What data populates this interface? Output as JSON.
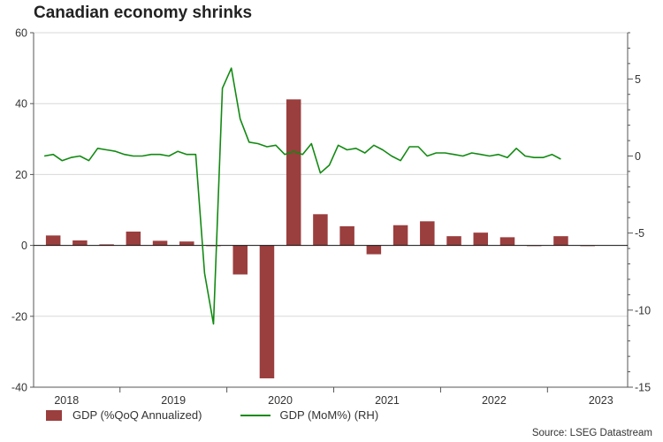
{
  "chart_data": {
    "type": "bar+line",
    "title": "Canadian economy shrinks",
    "source": "Source: LSEG Datastream",
    "x_ticks": [
      "2018",
      "2019",
      "2020",
      "2021",
      "2022",
      "2023"
    ],
    "left_axis": {
      "ylim": [
        -40,
        60
      ],
      "ticks": [
        -40,
        -20,
        0,
        20,
        40,
        60
      ]
    },
    "right_axis": {
      "ylim": [
        -15,
        8
      ],
      "ticks": [
        -15,
        -10,
        -5,
        0,
        5
      ]
    },
    "series": [
      {
        "name": "GDP (%QoQ Annualized)",
        "kind": "bar",
        "axis": "left",
        "color": "#9b3e3e",
        "categories": [
          "2018Q2",
          "2018Q3",
          "2018Q4",
          "2019Q1",
          "2019Q2",
          "2019Q3",
          "2019Q4",
          "2020Q1",
          "2020Q2",
          "2020Q3",
          "2020Q4",
          "2021Q1",
          "2021Q2",
          "2021Q3",
          "2021Q4",
          "2022Q1",
          "2022Q2",
          "2022Q3",
          "2022Q4",
          "2023Q1",
          "2023Q2"
        ],
        "values": [
          2.8,
          1.4,
          0.3,
          3.9,
          1.3,
          1.1,
          0.0,
          -8.2,
          -37.5,
          41.2,
          8.8,
          5.4,
          -2.5,
          5.7,
          6.8,
          2.6,
          3.6,
          2.3,
          0.0,
          2.6,
          -0.2
        ]
      },
      {
        "name": "GDP (MoM%) (RH)",
        "kind": "line",
        "axis": "right",
        "color": "#128a12",
        "start": "2018-04",
        "values": [
          0.0,
          0.1,
          -0.3,
          -0.1,
          0.0,
          -0.3,
          0.5,
          0.4,
          0.3,
          0.1,
          0.0,
          0.0,
          0.1,
          0.1,
          0.0,
          0.3,
          0.1,
          0.1,
          -7.6,
          -10.9,
          4.4,
          5.7,
          2.4,
          0.9,
          0.8,
          0.6,
          0.7,
          0.1,
          0.3,
          0.1,
          0.8,
          -1.1,
          -0.6,
          0.7,
          0.4,
          0.5,
          0.2,
          0.7,
          0.4,
          0.0,
          -0.3,
          0.6,
          0.6,
          0.0,
          0.2,
          0.2,
          0.1,
          0.0,
          0.2,
          0.1,
          0.0,
          0.1,
          -0.1,
          0.5,
          0.0,
          -0.1,
          -0.1,
          0.1,
          -0.2
        ]
      }
    ]
  }
}
